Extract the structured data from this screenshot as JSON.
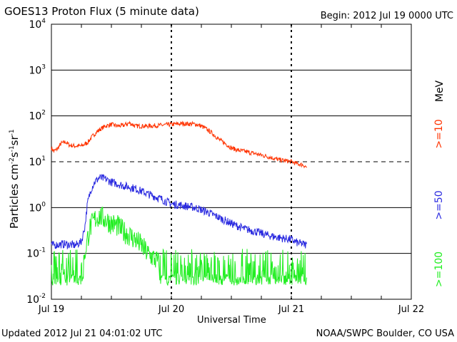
{
  "header": {
    "title": "GOES13 Proton Flux (5 minute data)",
    "begin": "Begin: 2012 Jul 19 0000 UTC"
  },
  "footer": {
    "updated": "Updated 2012 Jul 21 04:01:02 UTC",
    "source": "NOAA/SWPC Boulder, CO USA"
  },
  "colors": {
    "ge10": "#ff3300",
    "ge50": "#2a2ae0",
    "ge100": "#22ee22"
  },
  "chart_data": {
    "type": "line",
    "title": "GOES13 Proton Flux (5 minute data)",
    "xlabel": "Universal Time",
    "ylabel_parts": {
      "base": "Particles cm",
      "e1": "-2",
      "m1": "s",
      "e2": "-1",
      "m2": "sr",
      "e3": "-1"
    },
    "y_scale": "log",
    "ylim": [
      0.01,
      10000
    ],
    "y_ticks": [
      {
        "base": "10",
        "exp": "4"
      },
      {
        "base": "10",
        "exp": "3"
      },
      {
        "base": "10",
        "exp": "2"
      },
      {
        "base": "10",
        "exp": "1"
      },
      {
        "base": "10",
        "exp": "0"
      },
      {
        "base": "10",
        "exp": "-1"
      },
      {
        "base": "10",
        "exp": "-2"
      }
    ],
    "x_range_days": [
      0,
      3
    ],
    "x_ticks": [
      "Jul 19",
      "Jul 20",
      "Jul 21",
      "Jul 22"
    ],
    "threshold_line": 10,
    "legend_unit": "MeV",
    "series": [
      {
        "name": ">=10",
        "color": "#ff3300",
        "x": [
          0,
          0.02,
          0.05,
          0.08,
          0.12,
          0.15,
          0.2,
          0.25,
          0.3,
          0.35,
          0.4,
          0.45,
          0.5,
          0.55,
          0.6,
          0.65,
          0.7,
          0.8,
          0.9,
          1.0,
          1.1,
          1.2,
          1.25,
          1.3,
          1.35,
          1.4,
          1.45,
          1.5,
          1.55,
          1.6,
          1.7,
          1.8,
          1.9,
          2.0,
          2.05,
          2.1,
          2.13
        ],
        "values": [
          20,
          17,
          19,
          25,
          27,
          23,
          22,
          22,
          26,
          38,
          50,
          60,
          65,
          60,
          62,
          70,
          60,
          60,
          62,
          65,
          68,
          66,
          60,
          50,
          40,
          30,
          25,
          20,
          18,
          17,
          15,
          13,
          11,
          10,
          9,
          8.5,
          7.5
        ]
      },
      {
        "name": ">=50",
        "color": "#2a2ae0",
        "x": [
          0,
          0.1,
          0.2,
          0.25,
          0.28,
          0.3,
          0.33,
          0.36,
          0.4,
          0.45,
          0.5,
          0.55,
          0.6,
          0.7,
          0.8,
          0.9,
          1.0,
          1.1,
          1.2,
          1.3,
          1.4,
          1.5,
          1.6,
          1.7,
          1.8,
          1.9,
          2.0,
          2.05,
          2.1,
          2.13
        ],
        "values": [
          0.15,
          0.16,
          0.15,
          0.18,
          0.4,
          1.2,
          2.5,
          3.6,
          4.5,
          4.2,
          3.6,
          3.3,
          3.0,
          2.6,
          2.0,
          1.6,
          1.2,
          1.1,
          1.0,
          0.8,
          0.6,
          0.45,
          0.35,
          0.3,
          0.25,
          0.22,
          0.2,
          0.17,
          0.16,
          0.15
        ]
      },
      {
        "name": ">=100",
        "color": "#22ee22",
        "x": [
          0,
          0.1,
          0.2,
          0.26,
          0.29,
          0.32,
          0.36,
          0.4,
          0.45,
          0.5,
          0.55,
          0.6,
          0.65,
          0.7,
          0.75,
          0.8,
          0.85,
          0.9,
          0.95,
          1.0,
          1.2,
          1.4,
          1.6,
          1.8,
          2.0,
          2.13
        ],
        "values": [
          0.04,
          0.04,
          0.04,
          0.04,
          0.15,
          0.35,
          0.55,
          0.65,
          0.55,
          0.45,
          0.4,
          0.3,
          0.25,
          0.2,
          0.15,
          0.1,
          0.08,
          0.06,
          0.05,
          0.04,
          0.04,
          0.04,
          0.04,
          0.04,
          0.04,
          0.04
        ]
      }
    ]
  }
}
